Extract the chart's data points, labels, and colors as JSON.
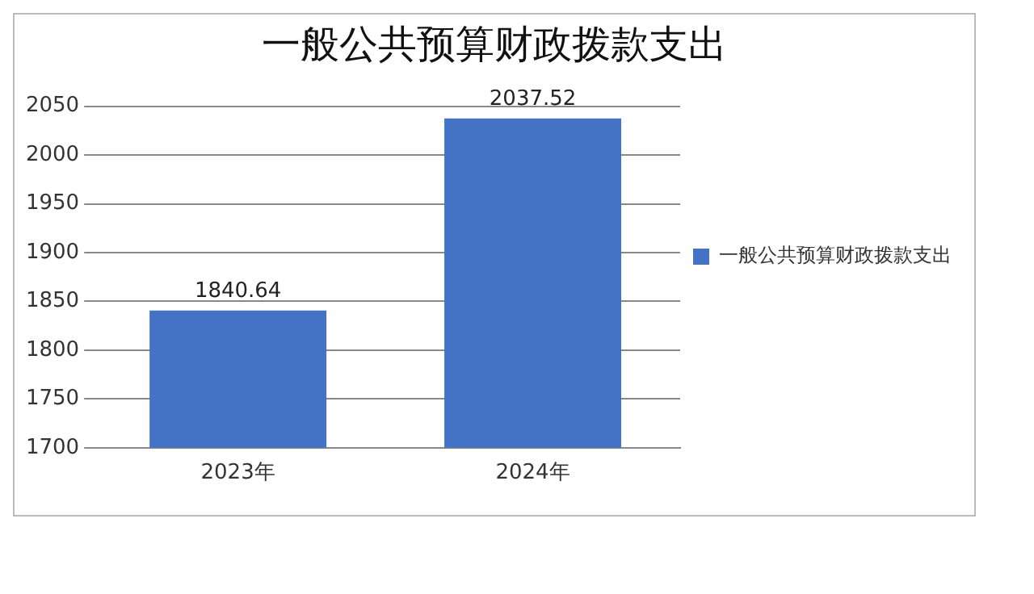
{
  "chart_data": {
    "type": "bar",
    "title": "一般公共预算财政拨款支出",
    "categories": [
      "2023年",
      "2024年"
    ],
    "series": [
      {
        "name": "一般公共预算财政拨款支出",
        "color": "#4472c4",
        "values": [
          1840.64,
          2037.52
        ]
      }
    ],
    "ylim": [
      1700,
      2050
    ],
    "yticks": [
      1700,
      1750,
      1800,
      1850,
      1900,
      1950,
      2000,
      2050
    ],
    "grid": "y",
    "legend": "right",
    "data_labels": true
  }
}
